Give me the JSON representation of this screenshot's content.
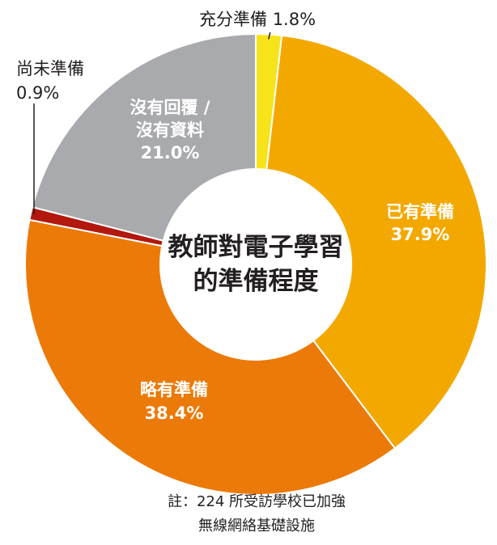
{
  "chart_data": {
    "type": "pie",
    "donut": true,
    "title": [
      "教師對電子學習",
      "的準備程度"
    ],
    "slices": [
      {
        "name": "充分準備",
        "value_label": "1.8%",
        "value": 1.8,
        "color": "#f7e319"
      },
      {
        "name": "已有準備",
        "value_label": "37.9%",
        "value": 37.9,
        "color": "#f3a800"
      },
      {
        "name": "略有準備",
        "value_label": "38.4%",
        "value": 38.4,
        "color": "#ec7a08"
      },
      {
        "name": "尚未準備",
        "value_label": "0.9%",
        "value": 0.9,
        "color": "#b2180c"
      },
      {
        "name": "沒有回覆 / 沒有資料",
        "value_label": "21.0%",
        "value": 21.0,
        "color": "#a8aaad",
        "label_lines": [
          "沒有回覆 /",
          "沒有資料"
        ]
      }
    ],
    "note": [
      "註：224 所受訪學校已加強",
      "無線網絡基礎設施"
    ]
  }
}
